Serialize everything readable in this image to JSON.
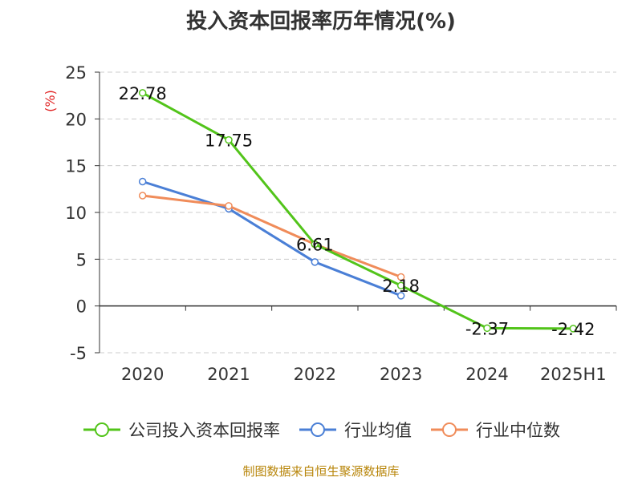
{
  "title": "投入资本回报率历年情况(%)",
  "source": "制图数据来自恒生聚源数据库",
  "chart_data": {
    "type": "line",
    "categories": [
      "2020",
      "2021",
      "2022",
      "2023",
      "2024",
      "2025H1"
    ],
    "ylabel": "(%)",
    "ylim": [
      -5,
      25
    ],
    "yticks": [
      -5,
      0,
      5,
      10,
      15,
      20,
      25
    ],
    "grid": true,
    "legend_position": "bottom",
    "series": [
      {
        "name": "公司投入资本回报率",
        "color": "#52c41a",
        "values": [
          22.78,
          17.75,
          6.61,
          2.18,
          -2.37,
          -2.42
        ],
        "show_labels": true
      },
      {
        "name": "行业均值",
        "color": "#4a7fd6",
        "values": [
          13.3,
          10.4,
          4.7,
          1.1,
          null,
          null
        ],
        "show_labels": false
      },
      {
        "name": "行业中位数",
        "color": "#f08c5a",
        "values": [
          11.8,
          10.7,
          6.6,
          3.1,
          null,
          null
        ],
        "show_labels": false
      }
    ]
  }
}
